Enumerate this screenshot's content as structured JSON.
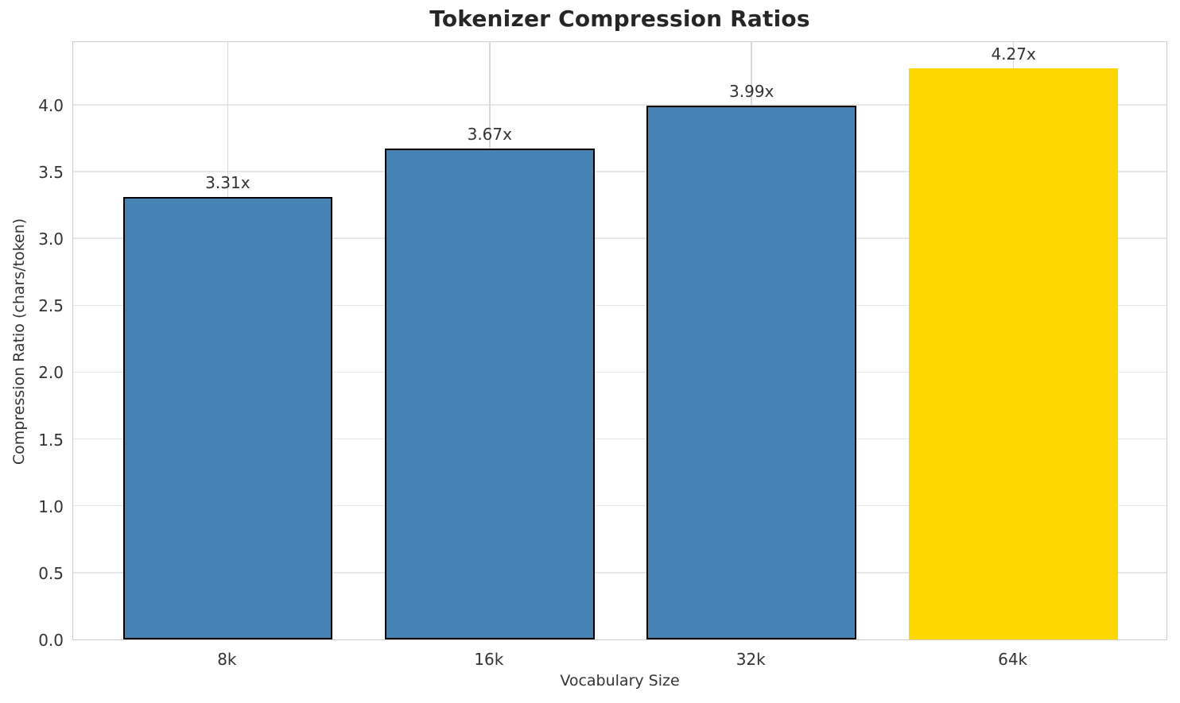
{
  "chart_data": {
    "type": "bar",
    "title": "Tokenizer Compression Ratios",
    "xlabel": "Vocabulary Size",
    "ylabel": "Compression Ratio (chars/token)",
    "categories": [
      "8k",
      "16k",
      "32k",
      "64k"
    ],
    "values": [
      3.31,
      3.67,
      3.99,
      4.27
    ],
    "bar_labels": [
      "3.31x",
      "3.67x",
      "3.99x",
      "4.27x"
    ],
    "bar_colors": [
      "#4682B4",
      "#4682B4",
      "#4682B4",
      "#FFD700"
    ],
    "bar_edge_colors": [
      "#000000",
      "#000000",
      "#000000",
      "none"
    ],
    "ylim": [
      0,
      4.48
    ],
    "yticks": [
      0.0,
      0.5,
      1.0,
      1.5,
      2.0,
      2.5,
      3.0,
      3.5,
      4.0
    ],
    "ytick_labels": [
      "0.0",
      "0.5",
      "1.0",
      "1.5",
      "2.0",
      "2.5",
      "3.0",
      "3.5",
      "4.0"
    ],
    "grid": true,
    "legend": "none",
    "colors": {
      "series": "#4682B4",
      "highlight": "#FFD700",
      "bar_edge": "#000000",
      "grid_h": "#e7e7e7",
      "grid_v": "#d9d9d9",
      "spine": "#cccccc",
      "text": "#333333",
      "title_text": "#262626",
      "background": "#ffffff"
    }
  }
}
